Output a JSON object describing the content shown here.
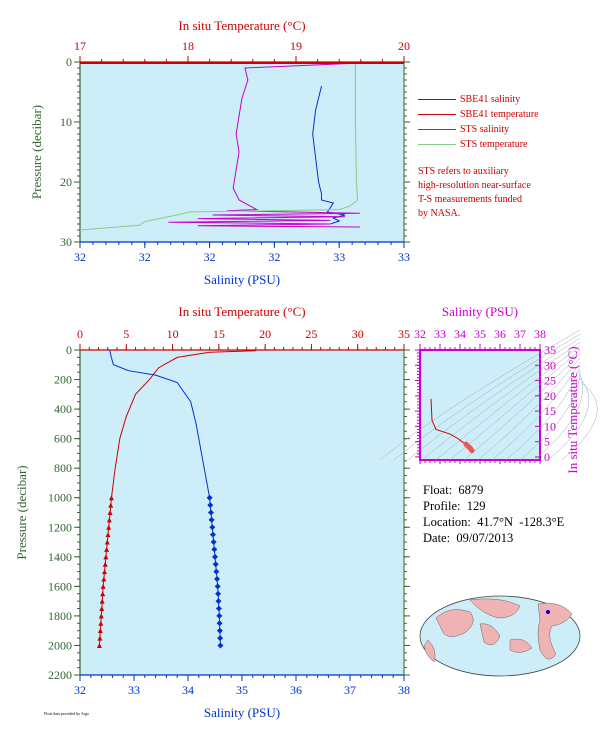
{
  "chart_data": [
    {
      "type": "line",
      "top_axis_title": "In situ Temperature (°C)",
      "top_ticks": [
        "17",
        "18",
        "19",
        "20"
      ],
      "xlabel": "Salinity (PSU)",
      "x_ticks": [
        "32",
        "32",
        "32",
        "32",
        "33",
        "33"
      ],
      "ylabel": "Pressure (decibar)",
      "y_ticks": [
        "0",
        "10",
        "20",
        "30"
      ],
      "temperature_range": [
        17,
        20
      ],
      "salinity_range": [
        32.0,
        33.1
      ],
      "pressure_range": [
        0,
        30
      ],
      "series": [
        {
          "name": "SBE41 salinity",
          "color": "#0033cc",
          "points": [
            [
              32.82,
              4
            ],
            [
              32.8,
              8
            ],
            [
              32.79,
              12
            ],
            [
              32.8,
              16
            ],
            [
              32.81,
              20
            ],
            [
              32.82,
              22
            ],
            [
              32.82,
              23
            ],
            [
              32.86,
              23.5
            ],
            [
              32.84,
              25
            ],
            [
              32.9,
              25.5
            ],
            [
              32.86,
              26
            ],
            [
              32.88,
              26.5
            ],
            [
              32.85,
              27
            ]
          ]
        },
        {
          "name": "SBE41 temperature",
          "color": "#cc0000",
          "points": []
        },
        {
          "name": "STS salinity",
          "color": "#cc00cc",
          "points": [
            [
              32.55,
              0.1
            ],
            [
              32.98,
              0.1
            ],
            [
              32.56,
              1
            ],
            [
              32.57,
              3
            ],
            [
              32.55,
              6
            ],
            [
              32.54,
              9
            ],
            [
              32.53,
              12
            ],
            [
              32.54,
              15
            ],
            [
              32.53,
              18
            ],
            [
              32.52,
              21
            ],
            [
              32.54,
              23
            ],
            [
              32.6,
              24.6
            ],
            [
              32.5,
              24.8
            ],
            [
              32.95,
              25.2
            ],
            [
              32.45,
              25.5
            ],
            [
              32.9,
              25.8
            ],
            [
              32.4,
              26.1
            ],
            [
              32.85,
              26.4
            ],
            [
              32.3,
              26.7
            ],
            [
              32.85,
              27
            ],
            [
              32.4,
              27.3
            ],
            [
              32.95,
              27.5
            ]
          ]
        },
        {
          "name": "STS temperature",
          "color": "#88cc88",
          "points": [
            [
              19.55,
              0
            ],
            [
              19.55,
              5
            ],
            [
              19.55,
              10
            ],
            [
              19.56,
              20
            ],
            [
              19.57,
              23
            ],
            [
              19.5,
              24
            ],
            [
              19.4,
              24.6
            ],
            [
              18.0,
              25
            ],
            [
              17.95,
              25.3
            ],
            [
              17.6,
              26.6
            ],
            [
              17.55,
              27.2
            ],
            [
              17.0,
              28
            ]
          ]
        }
      ]
    },
    {
      "type": "line",
      "top_axis_title": "In situ Temperature (°C)",
      "top_ticks": [
        "0",
        "5",
        "10",
        "15",
        "20",
        "25",
        "30",
        "35"
      ],
      "xlabel": "Salinity (PSU)",
      "x_ticks": [
        "32",
        "33",
        "34",
        "35",
        "36",
        "37",
        "38"
      ],
      "ylabel": "Pressure (decibar)",
      "y_ticks": [
        "0",
        "200",
        "400",
        "600",
        "800",
        "1000",
        "1200",
        "1400",
        "1600",
        "1800",
        "2000",
        "2200"
      ],
      "temperature_range": [
        0,
        35
      ],
      "salinity_range": [
        32,
        38
      ],
      "pressure_range": [
        0,
        2200
      ],
      "series": [
        {
          "name": "Salinity",
          "color": "#0033cc",
          "points": [
            [
              32.55,
              0
            ],
            [
              32.58,
              50
            ],
            [
              32.62,
              100
            ],
            [
              32.9,
              140
            ],
            [
              33.4,
              170
            ],
            [
              33.8,
              220
            ],
            [
              34.05,
              350
            ],
            [
              34.15,
              500
            ],
            [
              34.25,
              700
            ],
            [
              34.35,
              900
            ],
            [
              34.4,
              1000
            ],
            [
              34.45,
              1200
            ],
            [
              34.5,
              1400
            ],
            [
              34.55,
              1600
            ],
            [
              34.58,
              1800
            ],
            [
              34.6,
              2000
            ]
          ],
          "markers_from": 1000
        },
        {
          "name": "Temperature",
          "color": "#cc0000",
          "points": [
            [
              19.0,
              5
            ],
            [
              14.0,
              15
            ],
            [
              10.5,
              50
            ],
            [
              8.5,
              120
            ],
            [
              7.5,
              200
            ],
            [
              6.0,
              300
            ],
            [
              5.0,
              450
            ],
            [
              4.3,
              600
            ],
            [
              3.8,
              800
            ],
            [
              3.4,
              1000
            ],
            [
              3.1,
              1200
            ],
            [
              2.8,
              1400
            ],
            [
              2.5,
              1600
            ],
            [
              2.3,
              1800
            ],
            [
              2.1,
              2000
            ]
          ],
          "markers_from": 1000
        }
      ]
    },
    {
      "type": "scatter",
      "top_axis_title": "Salinity (PSU)",
      "top_ticks": [
        "32",
        "33",
        "34",
        "35",
        "36",
        "37",
        "38"
      ],
      "right_axis_title": "In situ Temperature (°C)",
      "right_ticks": [
        "0",
        "5",
        "10",
        "15",
        "20",
        "25",
        "30",
        "35"
      ],
      "salinity_range": [
        32,
        38
      ],
      "temperature_range": [
        -1,
        35
      ],
      "series": [
        {
          "name": "T-S",
          "color": "#cc0000",
          "points": [
            [
              32.55,
              19
            ],
            [
              32.6,
              12
            ],
            [
              32.8,
              9
            ],
            [
              33.5,
              7.5
            ],
            [
              33.9,
              6
            ],
            [
              34.1,
              5
            ],
            [
              34.3,
              4.2
            ],
            [
              34.4,
              3.5
            ],
            [
              34.5,
              3
            ],
            [
              34.55,
              2.5
            ],
            [
              34.6,
              2.1
            ]
          ]
        }
      ]
    }
  ],
  "legend": {
    "items": [
      {
        "label": "SBE41 salinity",
        "color": "#0033cc"
      },
      {
        "label": "SBE41 temperature",
        "color": "#cc0000"
      },
      {
        "label": "STS salinity",
        "color": "#cc00cc"
      },
      {
        "label": "STS temperature",
        "color": "#88cc88"
      }
    ],
    "note": "STS refers to auxiliary\nhigh-resolution near-surface\nT-S measurements funded\nby NASA."
  },
  "info": {
    "float": "Float:  6879",
    "profile": "Profile:  129",
    "location": "Location:  41.7°N  -128.3°E",
    "date": "Date:  09/07/2013"
  },
  "map": {
    "name": "world-map"
  },
  "ack": "Float data provided by Argo"
}
